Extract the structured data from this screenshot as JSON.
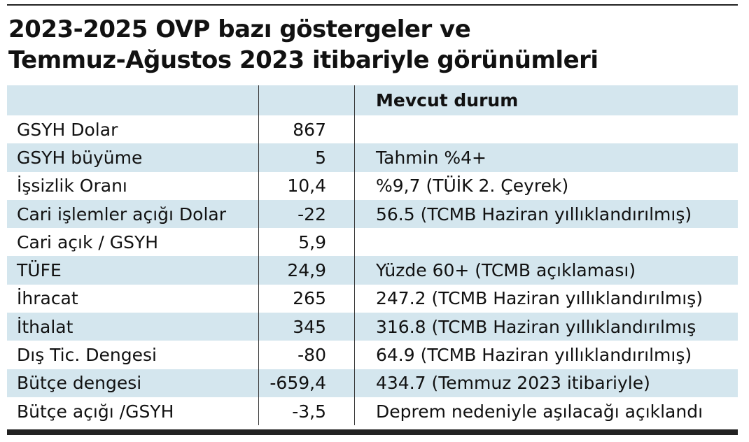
{
  "title": {
    "line1": "2023-2025 OVP bazı göstergeler ve",
    "line2": "Temmuz-Ağustos 2023 itibariyle görünümleri"
  },
  "table": {
    "headers": [
      "",
      "",
      "Mevcut durum"
    ],
    "rows": [
      [
        "GSYH Dolar",
        "867",
        ""
      ],
      [
        "GSYH büyüme",
        "5",
        "Tahmin %4+"
      ],
      [
        "İşsizlik Oranı",
        "10,4",
        "%9,7 (TÜİK 2. Çeyrek)"
      ],
      [
        "Cari işlemler açığı Dolar",
        "-22",
        "56.5 (TCMB Haziran yıllıklandırılmış)"
      ],
      [
        "Cari açık / GSYH",
        "5,9",
        ""
      ],
      [
        "TÜFE",
        "24,9",
        "Yüzde 60+ (TCMB açıklaması)"
      ],
      [
        "İhracat",
        "265",
        "247.2 (TCMB Haziran yıllıklandırılmış)"
      ],
      [
        "İthalat",
        "345",
        "316.8 (TCMB Haziran yıllıklandırılmış"
      ],
      [
        "Dış Tic. Dengesi",
        "-80",
        "64.9 (TCMB Haziran yıllıklandırılmış)"
      ],
      [
        "Bütçe dengesi",
        "-659,4",
        "434.7 (Temmuz 2023 itibariyle)"
      ],
      [
        "Bütçe açığı /GSYH",
        "-3,5",
        "Deprem nedeniyle aşılacağı açıklandı"
      ]
    ]
  },
  "colors": {
    "row_shade": "#d4e6ee",
    "rule": "#222222"
  }
}
